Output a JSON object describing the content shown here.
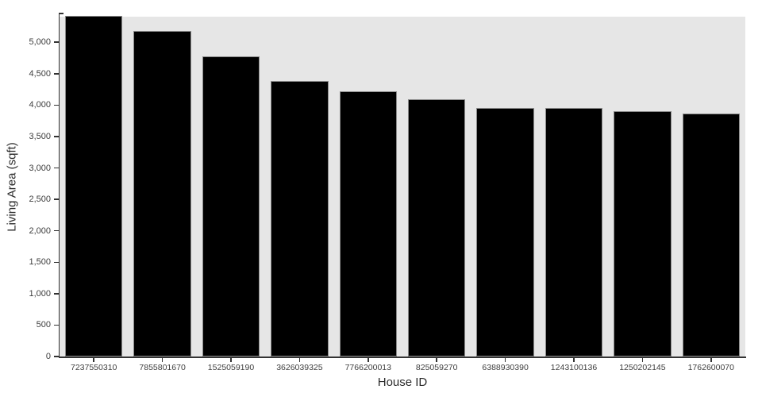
{
  "chart_data": {
    "type": "bar",
    "title": "",
    "xlabel": "House ID",
    "ylabel": "Living Area (sqft)",
    "categories": [
      "7237550310",
      "7855801670",
      "1525059190",
      "3626039325",
      "7766200013",
      "825059270",
      "6388930390",
      "1243100136",
      "1250202145",
      "1762600070"
    ],
    "values": [
      5420,
      5180,
      4770,
      4380,
      4220,
      4090,
      3960,
      3950,
      3900,
      3870
    ],
    "ylim": [
      0,
      5420
    ],
    "yticks": [
      0,
      500,
      1000,
      1500,
      2000,
      2500,
      3000,
      3500,
      4000,
      4500,
      5000
    ],
    "ytick_labels": [
      "0",
      "500",
      "1,000",
      "1,500",
      "2,000",
      "2,500",
      "3,000",
      "3,500",
      "4,000",
      "4,500",
      "5,000"
    ],
    "grid": false,
    "legend": null,
    "colors": {
      "bar_fill": "#000000",
      "bar_stroke": "#8a8a8a",
      "plot_background": "#e6e6e6",
      "page_background": "#ffffff",
      "axis_line": "#333333",
      "tick_text": "#3d3d3d",
      "title_text": "#2b2b2b"
    }
  }
}
